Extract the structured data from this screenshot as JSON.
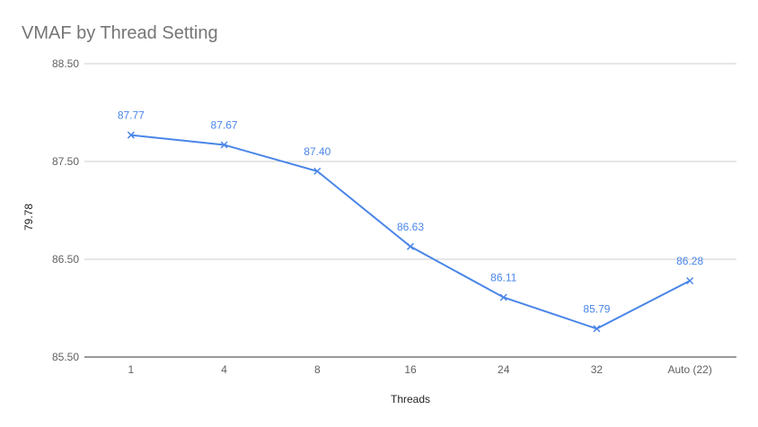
{
  "chart_data": {
    "type": "line",
    "title": "VMAF by Thread Setting",
    "xlabel": "Threads",
    "ylabel": "79.78",
    "categories": [
      "1",
      "4",
      "8",
      "16",
      "24",
      "32",
      "Auto (22)"
    ],
    "series": [
      {
        "values": [
          87.77,
          87.67,
          87.4,
          86.63,
          86.11,
          85.79,
          86.28
        ]
      }
    ],
    "data_labels": [
      "87.77",
      "87.67",
      "87.40",
      "86.63",
      "86.11",
      "85.79",
      "86.28"
    ],
    "yticks": [
      "85.50",
      "86.50",
      "87.50",
      "88.50"
    ],
    "ylim": [
      85.5,
      88.5
    ],
    "grid": true,
    "marker": "x",
    "colors": {
      "line": "#4a86e8",
      "grid": "#cccccc",
      "baseline": "#333333"
    }
  }
}
